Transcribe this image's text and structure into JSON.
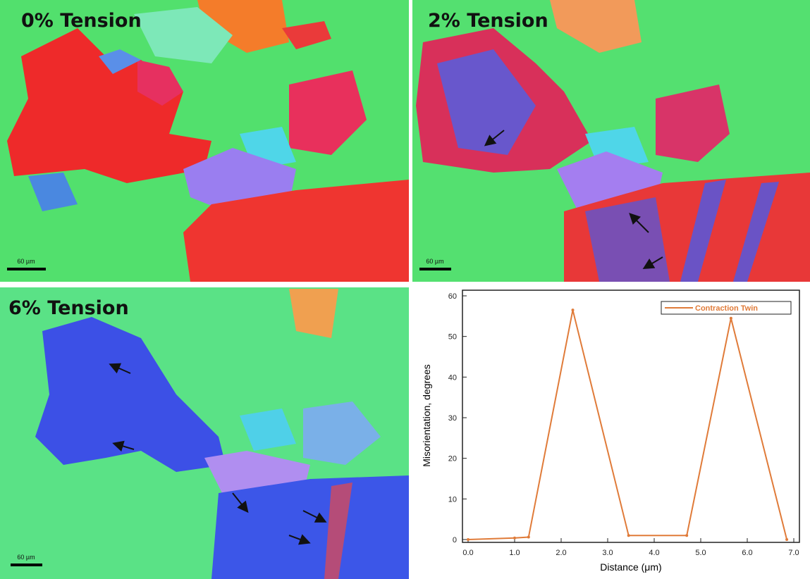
{
  "panels": [
    {
      "label": "0% Tension",
      "scale_bar": "60 µm"
    },
    {
      "label": "2% Tension",
      "scale_bar": "60 µm"
    },
    {
      "label": "6% Tension",
      "scale_bar": "60 µm"
    }
  ],
  "chart_data": {
    "type": "line",
    "xlabel": "Distance (μm)",
    "ylabel": "Misorientation, degrees",
    "series": [
      {
        "name": "Contraction Twin",
        "color": "#e07b39",
        "x": [
          0.0,
          1.0,
          1.3,
          2.25,
          3.45,
          4.7,
          5.65,
          6.85
        ],
        "values": [
          0,
          0.4,
          0.6,
          56.5,
          1,
          1,
          54.5,
          0
        ]
      }
    ],
    "xlim": [
      0,
      7
    ],
    "ylim": [
      0,
      60
    ],
    "xticks": [
      {
        "value": 0,
        "label": "0.0"
      },
      {
        "value": 1,
        "label": "1.0"
      },
      {
        "value": 2,
        "label": "2.0"
      },
      {
        "value": 3,
        "label": "3.0"
      },
      {
        "value": 4,
        "label": "4.0"
      },
      {
        "value": 5,
        "label": "5.0"
      },
      {
        "value": 6,
        "label": "6.0"
      },
      {
        "value": 7,
        "label": "7.0"
      }
    ],
    "yticks": [
      0,
      10,
      20,
      30,
      40,
      50,
      60
    ],
    "legend": "upper right"
  }
}
